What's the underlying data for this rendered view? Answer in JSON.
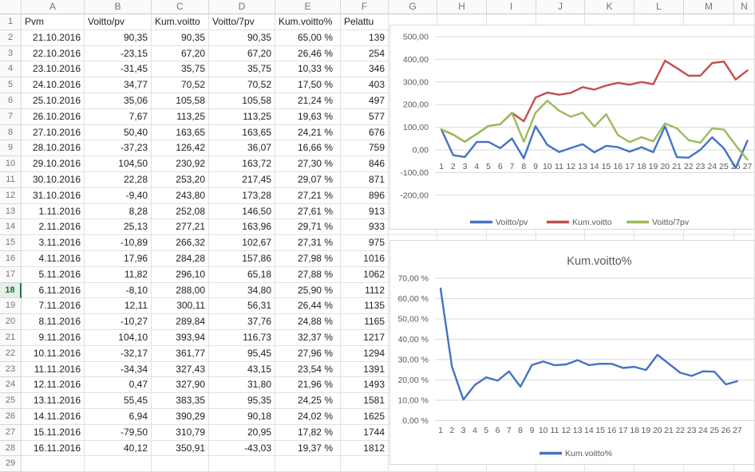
{
  "sheet": {
    "columns": [
      "A",
      "B",
      "C",
      "D",
      "E",
      "F",
      "G",
      "H",
      "I",
      "J",
      "K",
      "L",
      "M",
      "N"
    ],
    "row_numbers": [
      "1",
      "2",
      "3",
      "4",
      "5",
      "6",
      "7",
      "8",
      "9",
      "10",
      "11",
      "12",
      "13",
      "14",
      "15",
      "16",
      "17",
      "18",
      "19",
      "20",
      "21",
      "22",
      "23",
      "24",
      "25",
      "26",
      "27",
      "28",
      "29"
    ],
    "selected_row": "18"
  },
  "table": {
    "headers": [
      "Pvm",
      "Voitto/pv",
      "Kum.voitto",
      "Voitto/7pv",
      "Kum.voitto%",
      "Pelattu"
    ],
    "rows": [
      [
        "21.10.2016",
        "90,35",
        "90,35",
        "90,35",
        "65,00 %",
        "139"
      ],
      [
        "22.10.2016",
        "-23,15",
        "67,20",
        "67,20",
        "26,46 %",
        "254"
      ],
      [
        "23.10.2016",
        "-31,45",
        "35,75",
        "35,75",
        "10,33 %",
        "346"
      ],
      [
        "24.10.2016",
        "34,77",
        "70,52",
        "70,52",
        "17,50 %",
        "403"
      ],
      [
        "25.10.2016",
        "35,06",
        "105,58",
        "105,58",
        "21,24 %",
        "497"
      ],
      [
        "26.10.2016",
        "7,67",
        "113,25",
        "113,25",
        "19,63 %",
        "577"
      ],
      [
        "27.10.2016",
        "50,40",
        "163,65",
        "163,65",
        "24,21 %",
        "676"
      ],
      [
        "28.10.2016",
        "-37,23",
        "126,42",
        "36,07",
        "16,66 %",
        "759"
      ],
      [
        "29.10.2016",
        "104,50",
        "230,92",
        "163,72",
        "27,30 %",
        "846"
      ],
      [
        "30.10.2016",
        "22,28",
        "253,20",
        "217,45",
        "29,07 %",
        "871"
      ],
      [
        "31.10.2016",
        "-9,40",
        "243,80",
        "173,28",
        "27,21 %",
        "896"
      ],
      [
        "1.11.2016",
        "8,28",
        "252,08",
        "146,50",
        "27,61 %",
        "913"
      ],
      [
        "2.11.2016",
        "25,13",
        "277,21",
        "163,96",
        "29,71 %",
        "933"
      ],
      [
        "3.11.2016",
        "-10,89",
        "266,32",
        "102,67",
        "27,31 %",
        "975"
      ],
      [
        "4.11.2016",
        "17,96",
        "284,28",
        "157,86",
        "27,98 %",
        "1016"
      ],
      [
        "5.11.2016",
        "11,82",
        "296,10",
        "65,18",
        "27,88 %",
        "1062"
      ],
      [
        "6.11.2016",
        "-8,10",
        "288,00",
        "34,80",
        "25,90 %",
        "1112"
      ],
      [
        "7.11.2016",
        "12,11",
        "300,11",
        "56,31",
        "26,44 %",
        "1135"
      ],
      [
        "8.11.2016",
        "-10,27",
        "289,84",
        "37,76",
        "24,88 %",
        "1165"
      ],
      [
        "9.11.2016",
        "104,10",
        "393,94",
        "116,73",
        "32,37 %",
        "1217"
      ],
      [
        "10.11.2016",
        "-32,17",
        "361,77",
        "95,45",
        "27,96 %",
        "1294"
      ],
      [
        "11.11.2016",
        "-34,34",
        "327,43",
        "43,15",
        "23,54 %",
        "1391"
      ],
      [
        "12.11.2016",
        "0,47",
        "327,90",
        "31,80",
        "21,96 %",
        "1493"
      ],
      [
        "13.11.2016",
        "55,45",
        "383,35",
        "95,35",
        "24,25 %",
        "1581"
      ],
      [
        "14.11.2016",
        "6,94",
        "390,29",
        "90,18",
        "24,02 %",
        "1625"
      ],
      [
        "15.11.2016",
        "-79,50",
        "310,79",
        "20,95",
        "17,82 %",
        "1744"
      ],
      [
        "16.11.2016",
        "40,12",
        "350,91",
        "-43,03",
        "19,37 %",
        "1812"
      ]
    ]
  },
  "chart_data": [
    {
      "type": "line",
      "title": "",
      "x": [
        1,
        2,
        3,
        4,
        5,
        6,
        7,
        8,
        9,
        10,
        11,
        12,
        13,
        14,
        15,
        16,
        17,
        18,
        19,
        20,
        21,
        22,
        23,
        24,
        25,
        26,
        27
      ],
      "series": [
        {
          "name": "Voitto/pv",
          "color": "#4472c4",
          "values": [
            90.35,
            -23.15,
            -31.45,
            34.77,
            35.06,
            7.67,
            50.4,
            -37.23,
            104.5,
            22.28,
            -9.4,
            8.28,
            25.13,
            -10.89,
            17.96,
            11.82,
            -8.1,
            12.11,
            -10.27,
            104.1,
            -32.17,
            -34.34,
            0.47,
            55.45,
            6.94,
            -79.5,
            40.12
          ]
        },
        {
          "name": "Kum.voitto",
          "color": "#c0504d",
          "values": [
            90.35,
            67.2,
            35.75,
            70.52,
            105.58,
            113.25,
            163.65,
            126.42,
            230.92,
            253.2,
            243.8,
            252.08,
            277.21,
            266.32,
            284.28,
            296.1,
            288.0,
            300.11,
            289.84,
            393.94,
            361.77,
            327.43,
            327.9,
            383.35,
            390.29,
            310.79,
            350.91
          ]
        },
        {
          "name": "Voitto/7pv",
          "color": "#9bbb59",
          "values": [
            90.35,
            67.2,
            35.75,
            70.52,
            105.58,
            113.25,
            163.65,
            36.07,
            163.72,
            217.45,
            173.28,
            146.5,
            163.96,
            102.67,
            157.86,
            65.18,
            34.8,
            56.31,
            37.76,
            116.73,
            95.45,
            43.15,
            31.8,
            95.35,
            90.18,
            20.95,
            -43.03
          ]
        }
      ],
      "ylim": [
        -200,
        500
      ],
      "yticks": [
        500,
        400,
        300,
        200,
        100,
        0,
        -100,
        -200
      ],
      "ytick_labels": [
        "500,00",
        "400,00",
        "300,00",
        "200,00",
        "100,00",
        "0,00",
        "-100,00",
        "-200,00"
      ],
      "xlabel": "",
      "ylabel": "",
      "grid": true,
      "legend_position": "bottom"
    },
    {
      "type": "line",
      "title": "Kum.voitto%",
      "x": [
        1,
        2,
        3,
        4,
        5,
        6,
        7,
        8,
        9,
        10,
        11,
        12,
        13,
        14,
        15,
        16,
        17,
        18,
        19,
        20,
        21,
        22,
        23,
        24,
        25,
        26,
        27
      ],
      "series": [
        {
          "name": "Kum.voitto%",
          "color": "#4472c4",
          "values": [
            65.0,
            26.46,
            10.33,
            17.5,
            21.24,
            19.63,
            24.21,
            16.66,
            27.3,
            29.07,
            27.21,
            27.61,
            29.71,
            27.31,
            27.98,
            27.88,
            25.9,
            26.44,
            24.88,
            32.37,
            27.96,
            23.54,
            21.96,
            24.25,
            24.02,
            17.82,
            19.37
          ]
        }
      ],
      "ylim": [
        0,
        70
      ],
      "yticks": [
        70,
        60,
        50,
        40,
        30,
        20,
        10,
        0
      ],
      "ytick_labels": [
        "70,00 %",
        "60,00 %",
        "50,00 %",
        "40,00 %",
        "30,00 %",
        "20,00 %",
        "10,00 %",
        "0,00 %"
      ],
      "xlabel": "",
      "ylabel": "",
      "grid": true,
      "legend_position": "bottom"
    }
  ],
  "colors": {
    "accent_green": "#217346",
    "gridline": "#e2e2e2",
    "chart_grid": "#d9d9d9",
    "axis_text": "#595959"
  }
}
